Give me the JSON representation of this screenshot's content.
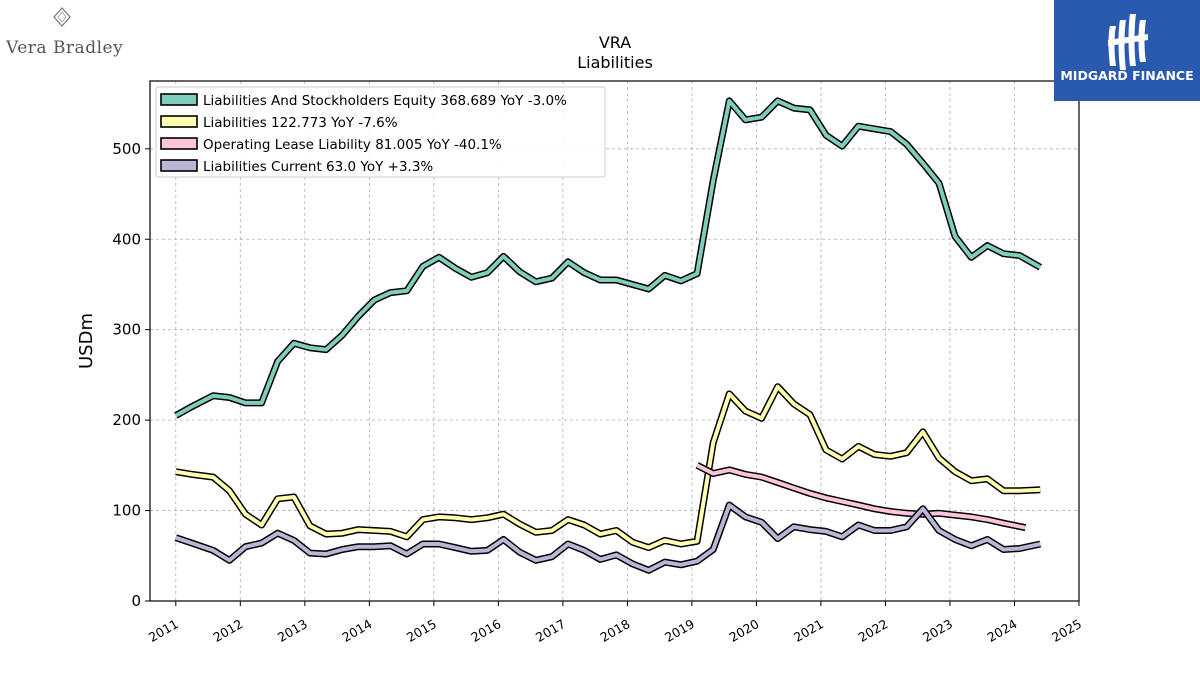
{
  "brands": {
    "left": {
      "name": "Vera Bradley"
    },
    "right": {
      "name": "MIDGARD FINANCE",
      "bg": "#2a5ab0"
    }
  },
  "chart_data": {
    "type": "line",
    "title": "VRA",
    "subtitle": "Liabilities",
    "ylabel": "USDm",
    "xlabel": "",
    "xlim": [
      2010.6,
      2025.0
    ],
    "ylim": [
      0,
      575
    ],
    "xticks": [
      "2011",
      "2012",
      "2013",
      "2014",
      "2015",
      "2016",
      "2017",
      "2018",
      "2019",
      "2020",
      "2021",
      "2022",
      "2023",
      "2024",
      "2025"
    ],
    "yticks": [
      "0",
      "100",
      "200",
      "300",
      "400",
      "500"
    ],
    "grid": true,
    "legend_position": "top-left",
    "series": [
      {
        "name": "Liabilities And Stockholders Equity",
        "legend": "Liabilities And Stockholders Equity  368.689 YoY -3.0%",
        "color": "#7fcdbb",
        "points": [
          [
            2011.0,
            205
          ],
          [
            2011.25,
            215
          ],
          [
            2011.58,
            227
          ],
          [
            2011.83,
            225
          ],
          [
            2012.08,
            219
          ],
          [
            2012.33,
            219
          ],
          [
            2012.58,
            265
          ],
          [
            2012.83,
            285
          ],
          [
            2013.08,
            280
          ],
          [
            2013.33,
            278
          ],
          [
            2013.58,
            294
          ],
          [
            2013.83,
            315
          ],
          [
            2014.08,
            333
          ],
          [
            2014.33,
            341
          ],
          [
            2014.58,
            343
          ],
          [
            2014.83,
            370
          ],
          [
            2015.08,
            380
          ],
          [
            2015.33,
            368
          ],
          [
            2015.58,
            358
          ],
          [
            2015.83,
            363
          ],
          [
            2016.08,
            381
          ],
          [
            2016.33,
            364
          ],
          [
            2016.58,
            353
          ],
          [
            2016.83,
            357
          ],
          [
            2017.08,
            375
          ],
          [
            2017.33,
            363
          ],
          [
            2017.58,
            355
          ],
          [
            2017.83,
            355
          ],
          [
            2018.08,
            350
          ],
          [
            2018.33,
            345
          ],
          [
            2018.58,
            360
          ],
          [
            2018.83,
            354
          ],
          [
            2019.08,
            362
          ],
          [
            2019.33,
            465
          ],
          [
            2019.58,
            553
          ],
          [
            2019.83,
            532
          ],
          [
            2020.08,
            535
          ],
          [
            2020.33,
            553
          ],
          [
            2020.58,
            545
          ],
          [
            2020.83,
            543
          ],
          [
            2021.08,
            515
          ],
          [
            2021.33,
            503
          ],
          [
            2021.58,
            525
          ],
          [
            2021.83,
            522
          ],
          [
            2022.08,
            519
          ],
          [
            2022.33,
            505
          ],
          [
            2022.58,
            484
          ],
          [
            2022.83,
            462
          ],
          [
            2023.08,
            403
          ],
          [
            2023.33,
            380
          ],
          [
            2023.58,
            393
          ],
          [
            2023.83,
            384
          ],
          [
            2024.08,
            382
          ],
          [
            2024.4,
            369
          ]
        ]
      },
      {
        "name": "Liabilities",
        "legend": "Liabilities  122.773 YoY -7.6%",
        "color": "#ffffb2",
        "points": [
          [
            2011.0,
            143
          ],
          [
            2011.25,
            140
          ],
          [
            2011.58,
            137
          ],
          [
            2011.83,
            122
          ],
          [
            2012.08,
            96
          ],
          [
            2012.33,
            84
          ],
          [
            2012.58,
            113
          ],
          [
            2012.83,
            115
          ],
          [
            2013.08,
            83
          ],
          [
            2013.33,
            74
          ],
          [
            2013.58,
            75
          ],
          [
            2013.83,
            79
          ],
          [
            2014.08,
            78
          ],
          [
            2014.33,
            77
          ],
          [
            2014.58,
            71
          ],
          [
            2014.83,
            90
          ],
          [
            2015.08,
            93
          ],
          [
            2015.33,
            92
          ],
          [
            2015.58,
            90
          ],
          [
            2015.83,
            92
          ],
          [
            2016.08,
            96
          ],
          [
            2016.33,
            85
          ],
          [
            2016.58,
            76
          ],
          [
            2016.83,
            78
          ],
          [
            2017.08,
            90
          ],
          [
            2017.33,
            84
          ],
          [
            2017.58,
            74
          ],
          [
            2017.83,
            78
          ],
          [
            2018.08,
            65
          ],
          [
            2018.33,
            59
          ],
          [
            2018.58,
            67
          ],
          [
            2018.83,
            63
          ],
          [
            2019.08,
            66
          ],
          [
            2019.33,
            175
          ],
          [
            2019.58,
            229
          ],
          [
            2019.83,
            210
          ],
          [
            2020.08,
            202
          ],
          [
            2020.33,
            237
          ],
          [
            2020.58,
            218
          ],
          [
            2020.83,
            206
          ],
          [
            2021.08,
            167
          ],
          [
            2021.33,
            157
          ],
          [
            2021.58,
            171
          ],
          [
            2021.83,
            162
          ],
          [
            2022.08,
            160
          ],
          [
            2022.33,
            164
          ],
          [
            2022.58,
            187
          ],
          [
            2022.83,
            158
          ],
          [
            2023.08,
            143
          ],
          [
            2023.33,
            133
          ],
          [
            2023.58,
            135
          ],
          [
            2023.83,
            122
          ],
          [
            2024.08,
            122
          ],
          [
            2024.4,
            123
          ]
        ]
      },
      {
        "name": "Operating Lease Liability",
        "legend": "Operating Lease Liability  81.005 YoY -40.1%",
        "color": "#fcc5dc",
        "points": [
          [
            2019.08,
            150
          ],
          [
            2019.33,
            141
          ],
          [
            2019.58,
            145
          ],
          [
            2019.83,
            140
          ],
          [
            2020.08,
            137
          ],
          [
            2020.33,
            131
          ],
          [
            2020.58,
            125
          ],
          [
            2020.83,
            119
          ],
          [
            2021.08,
            114
          ],
          [
            2021.33,
            110
          ],
          [
            2021.58,
            106
          ],
          [
            2021.83,
            102
          ],
          [
            2022.08,
            99
          ],
          [
            2022.33,
            97
          ],
          [
            2022.58,
            96
          ],
          [
            2022.83,
            97
          ],
          [
            2023.08,
            95
          ],
          [
            2023.33,
            93
          ],
          [
            2023.58,
            90
          ],
          [
            2023.83,
            86
          ],
          [
            2024.17,
            81
          ]
        ]
      },
      {
        "name": "Liabilities Current",
        "legend": "Liabilities Current  63.0 YoY +3.3%",
        "color": "#bcb5d6",
        "points": [
          [
            2011.0,
            70
          ],
          [
            2011.25,
            64
          ],
          [
            2011.58,
            56
          ],
          [
            2011.83,
            45
          ],
          [
            2012.08,
            60
          ],
          [
            2012.33,
            64
          ],
          [
            2012.58,
            75
          ],
          [
            2012.83,
            67
          ],
          [
            2013.08,
            53
          ],
          [
            2013.33,
            52
          ],
          [
            2013.58,
            57
          ],
          [
            2013.83,
            60
          ],
          [
            2014.08,
            60
          ],
          [
            2014.33,
            61
          ],
          [
            2014.58,
            52
          ],
          [
            2014.83,
            63
          ],
          [
            2015.08,
            63
          ],
          [
            2015.33,
            59
          ],
          [
            2015.58,
            55
          ],
          [
            2015.83,
            56
          ],
          [
            2016.08,
            68
          ],
          [
            2016.33,
            54
          ],
          [
            2016.58,
            45
          ],
          [
            2016.83,
            49
          ],
          [
            2017.08,
            63
          ],
          [
            2017.33,
            56
          ],
          [
            2017.58,
            46
          ],
          [
            2017.83,
            51
          ],
          [
            2018.08,
            41
          ],
          [
            2018.33,
            34
          ],
          [
            2018.58,
            43
          ],
          [
            2018.83,
            40
          ],
          [
            2019.08,
            44
          ],
          [
            2019.33,
            57
          ],
          [
            2019.58,
            106
          ],
          [
            2019.83,
            93
          ],
          [
            2020.08,
            87
          ],
          [
            2020.33,
            69
          ],
          [
            2020.58,
            82
          ],
          [
            2020.83,
            79
          ],
          [
            2021.08,
            77
          ],
          [
            2021.33,
            71
          ],
          [
            2021.58,
            84
          ],
          [
            2021.83,
            78
          ],
          [
            2022.08,
            78
          ],
          [
            2022.33,
            82
          ],
          [
            2022.58,
            102
          ],
          [
            2022.83,
            78
          ],
          [
            2023.08,
            68
          ],
          [
            2023.33,
            61
          ],
          [
            2023.58,
            68
          ],
          [
            2023.83,
            57
          ],
          [
            2024.08,
            58
          ],
          [
            2024.4,
            63
          ]
        ]
      }
    ]
  }
}
